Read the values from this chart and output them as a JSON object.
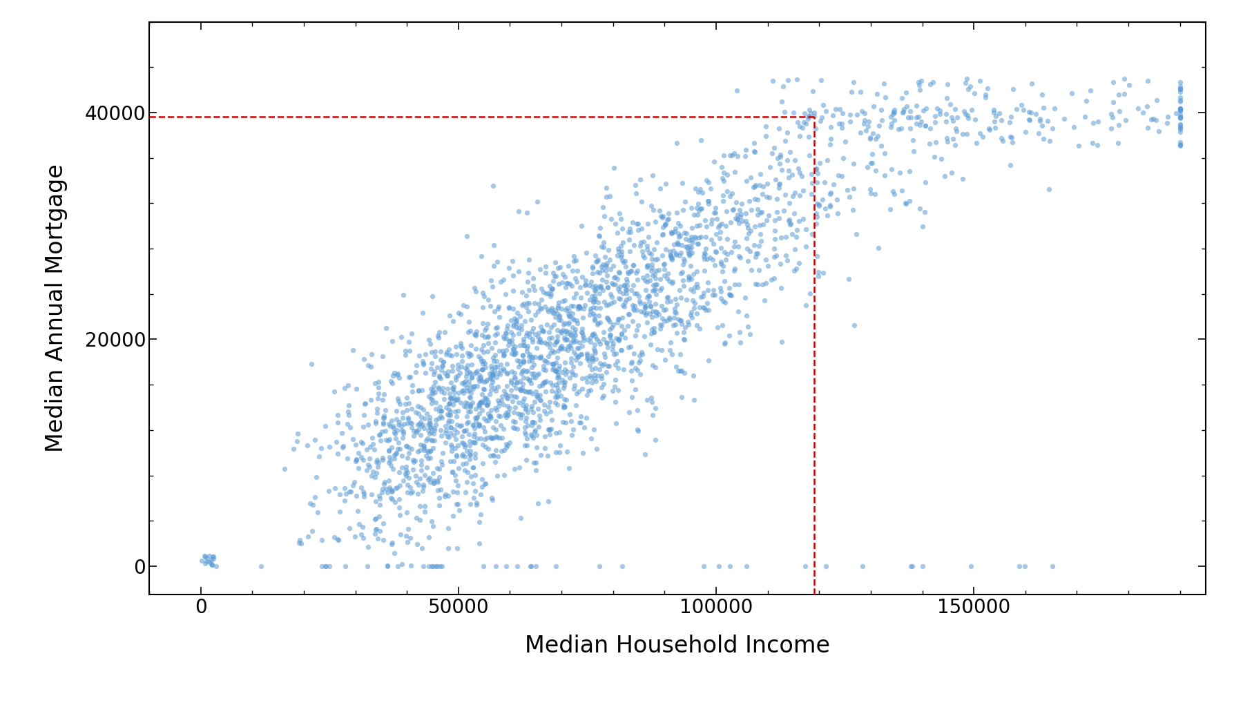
{
  "title": "",
  "xlabel": "Median Household Income",
  "ylabel": "Median Annual Mortgage",
  "xlim": [
    -10000,
    195000
  ],
  "ylim": [
    -2500,
    48000
  ],
  "xticks": [
    0,
    50000,
    100000,
    150000
  ],
  "yticks": [
    0,
    20000,
    40000
  ],
  "uwa_income": 118976,
  "uwa_mortgage": 39600,
  "dot_color": "#5b9bd5",
  "dot_alpha": 0.55,
  "dot_size": 28,
  "dashed_color": "#cc0000",
  "background_color": "white",
  "xlabel_fontsize": 24,
  "ylabel_fontsize": 24,
  "tick_fontsize": 20,
  "seed": 42,
  "n_points": 2500
}
